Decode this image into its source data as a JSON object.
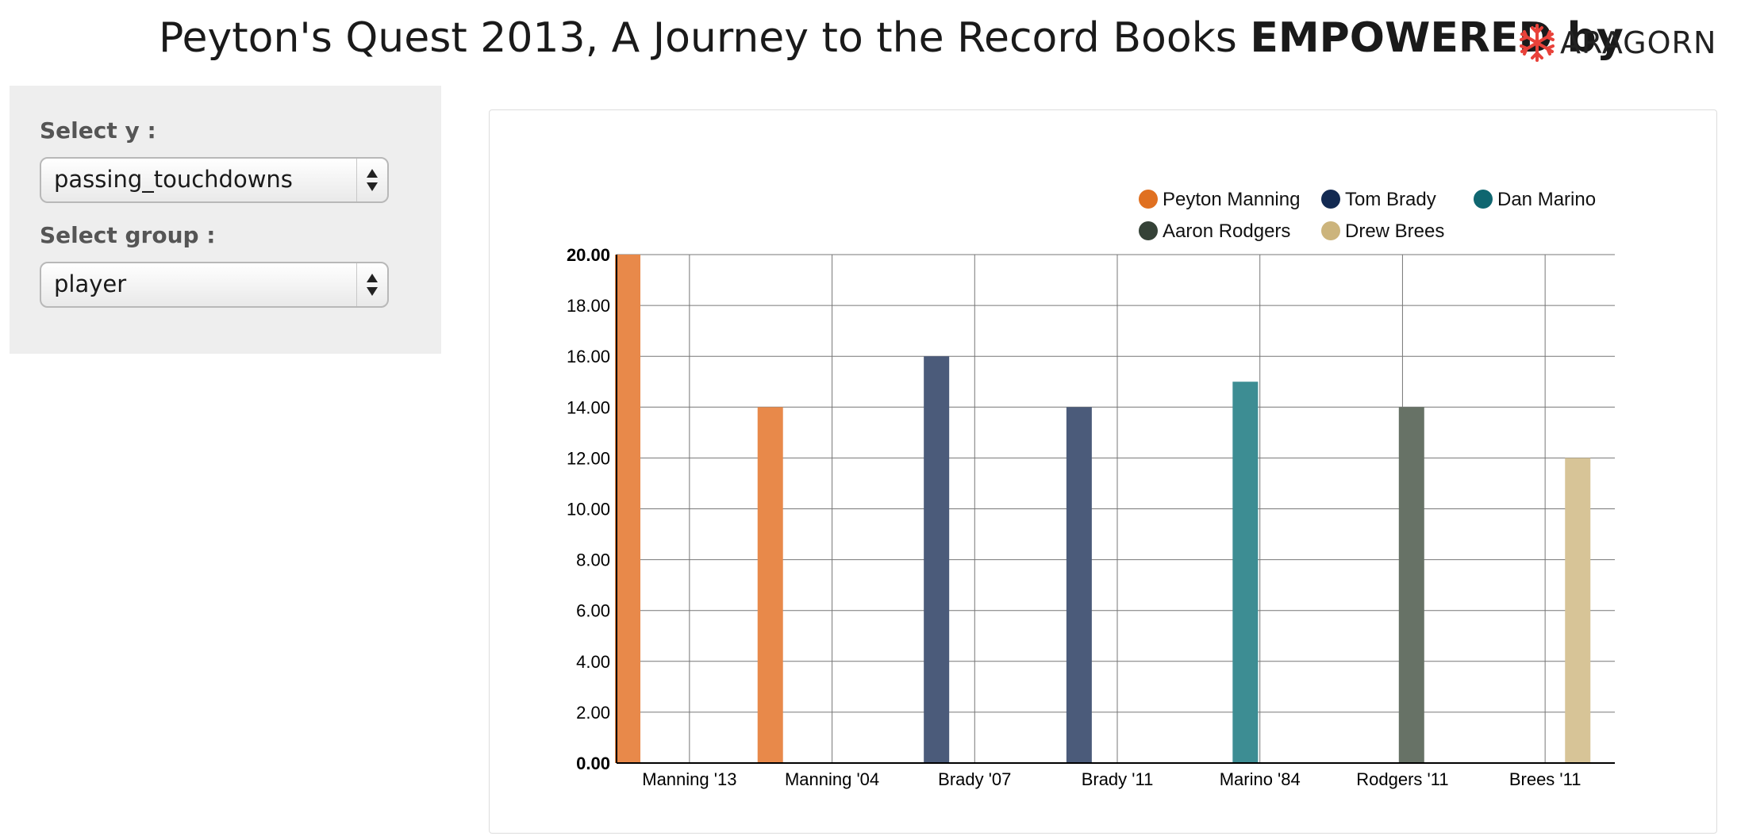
{
  "header": {
    "title_main": "Peyton's Quest 2013, A Journey to the Record Books ",
    "title_bold": "EMPOWERED by",
    "logo_text": "ARAGORN",
    "logo_color": "#e8423a"
  },
  "controls": {
    "y_label": "Select y :",
    "y_value": "passing_touchdowns",
    "group_label": "Select group :",
    "group_value": "player"
  },
  "chart_data": {
    "type": "bar",
    "categories": [
      "Manning '13",
      "Manning '04",
      "Brady '07",
      "Brady '11",
      "Marino '84",
      "Rodgers '11",
      "Brees '11"
    ],
    "series": [
      {
        "name": "Peyton Manning",
        "color": "#e07020",
        "bar_color": "#e8894a",
        "values": [
          20,
          14,
          null,
          null,
          null,
          null,
          null
        ]
      },
      {
        "name": "Tom Brady",
        "color": "#132a52",
        "bar_color": "#4b5b7a",
        "values": [
          null,
          null,
          16,
          14,
          null,
          null,
          null
        ]
      },
      {
        "name": "Dan Marino",
        "color": "#0f6670",
        "bar_color": "#3d8d93",
        "values": [
          null,
          null,
          null,
          null,
          15,
          null,
          null
        ]
      },
      {
        "name": "Aaron Rodgers",
        "color": "#354237",
        "bar_color": "#677266",
        "values": [
          null,
          null,
          null,
          null,
          null,
          14,
          null
        ]
      },
      {
        "name": "Drew Brees",
        "color": "#ccb47c",
        "bar_color": "#d7c497",
        "values": [
          null,
          null,
          null,
          null,
          null,
          null,
          12
        ]
      }
    ],
    "yticks": [
      "0.00",
      "2.00",
      "4.00",
      "6.00",
      "8.00",
      "10.00",
      "12.00",
      "14.00",
      "16.00",
      "18.00",
      "20.00"
    ],
    "ylim": [
      0,
      20
    ],
    "grid": true,
    "legend": "top-right"
  }
}
